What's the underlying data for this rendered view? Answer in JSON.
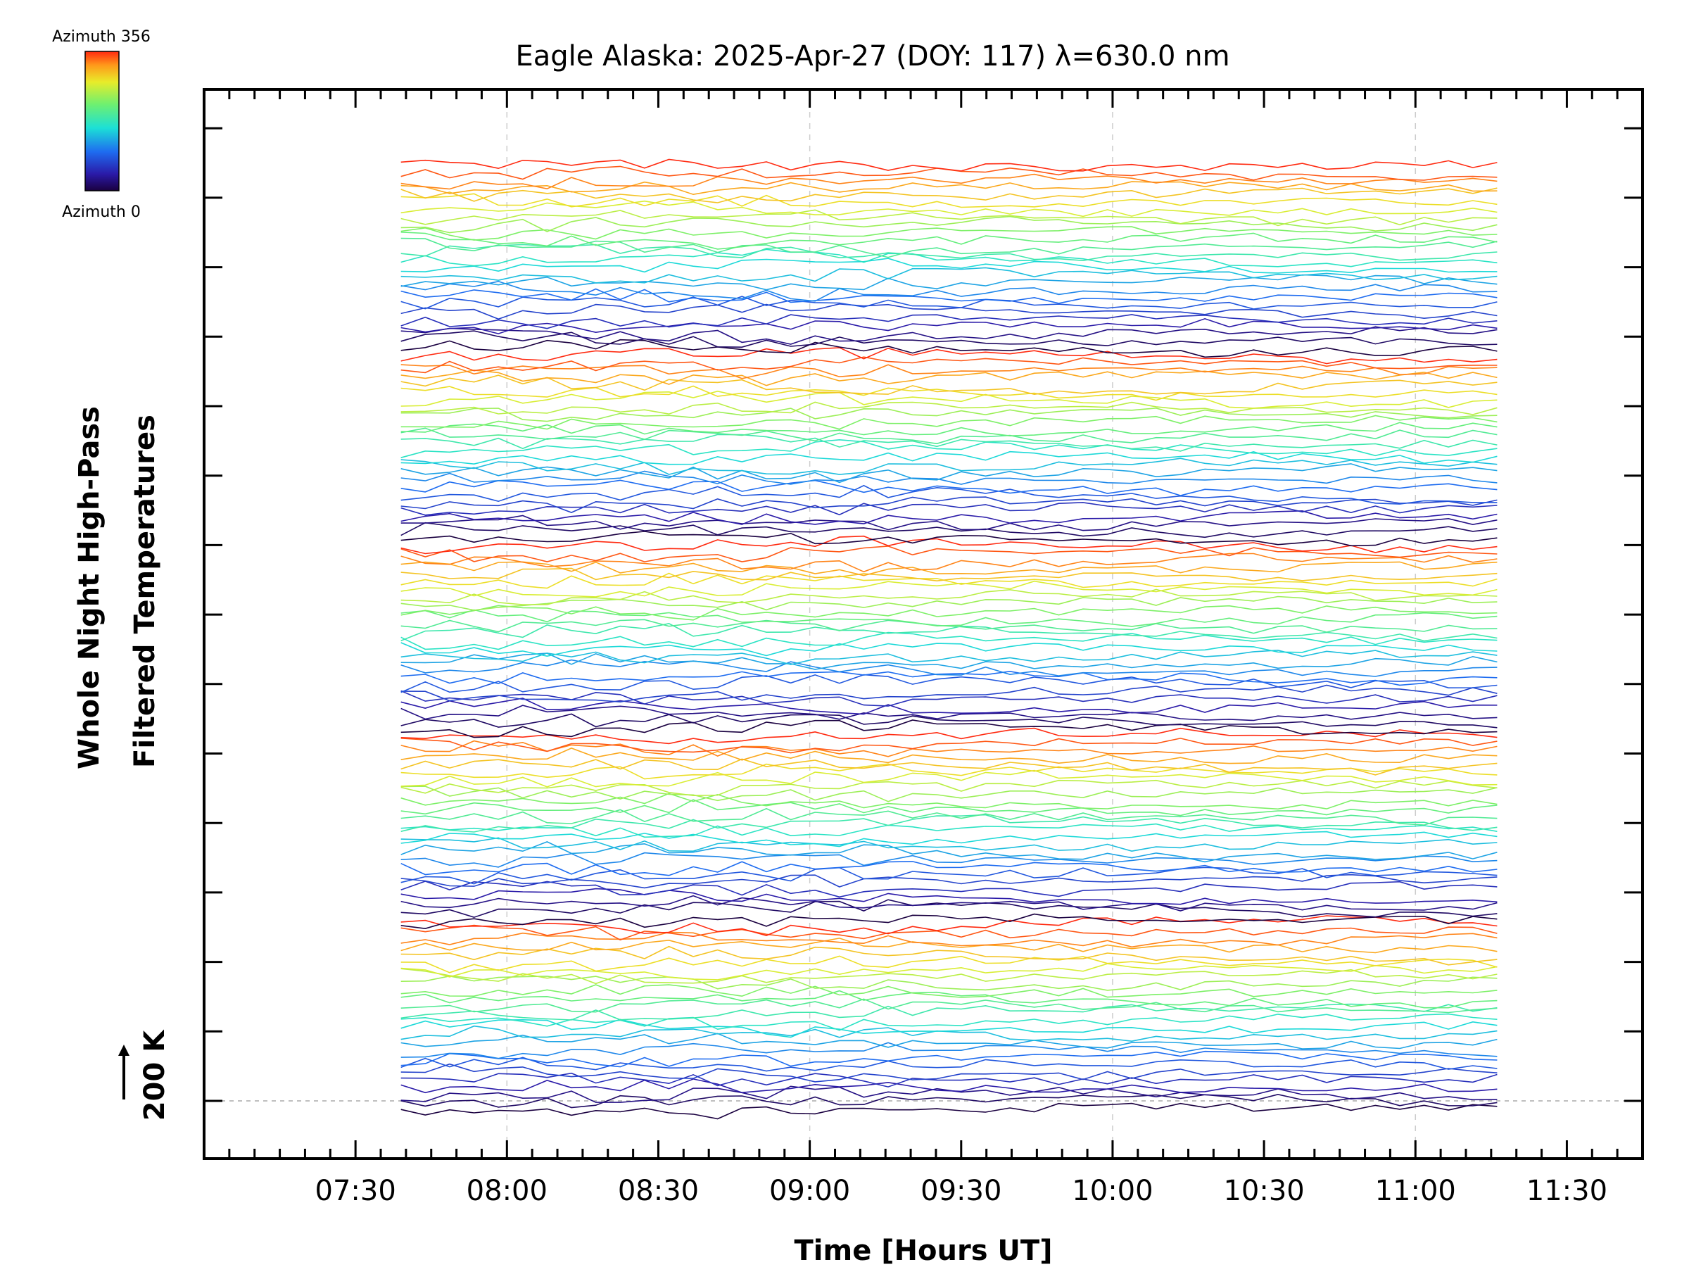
{
  "chart_data": {
    "type": "line",
    "title": "Eagle Alaska: 2025-Apr-27 (DOY: 117) λ=630.0 nm",
    "xlabel": "Time [Hours UT]",
    "ylabel_line1": "Whole Night High-Pass",
    "ylabel_line2": "Filtered Temperatures",
    "scale_label": "200 K",
    "xlim_hours": [
      7.0,
      11.75
    ],
    "x_ticks": [
      {
        "hour": 7.5,
        "label": "07:30"
      },
      {
        "hour": 8.0,
        "label": "08:00"
      },
      {
        "hour": 8.5,
        "label": "08:30"
      },
      {
        "hour": 9.0,
        "label": "09:00"
      },
      {
        "hour": 9.5,
        "label": "09:30"
      },
      {
        "hour": 10.0,
        "label": "10:00"
      },
      {
        "hour": 10.5,
        "label": "10:30"
      },
      {
        "hour": 11.0,
        "label": "11:00"
      },
      {
        "hour": 11.5,
        "label": "11:30"
      }
    ],
    "gridlines_hours": [
      8.0,
      9.0,
      10.0,
      11.0
    ],
    "data_start_hour": 7.65,
    "data_end_hour": 11.27,
    "colorbar": {
      "top_label": "Azimuth 356",
      "bottom_label": "Azimuth 0",
      "azimuth_range": [
        0,
        356
      ]
    },
    "series_count": 130,
    "series_note": "Stacked high-pass filtered temperature traces, one per azimuth sample, colored by azimuth on a rainbow scale, each offset vertically; offset baseline marked at 200 K."
  }
}
